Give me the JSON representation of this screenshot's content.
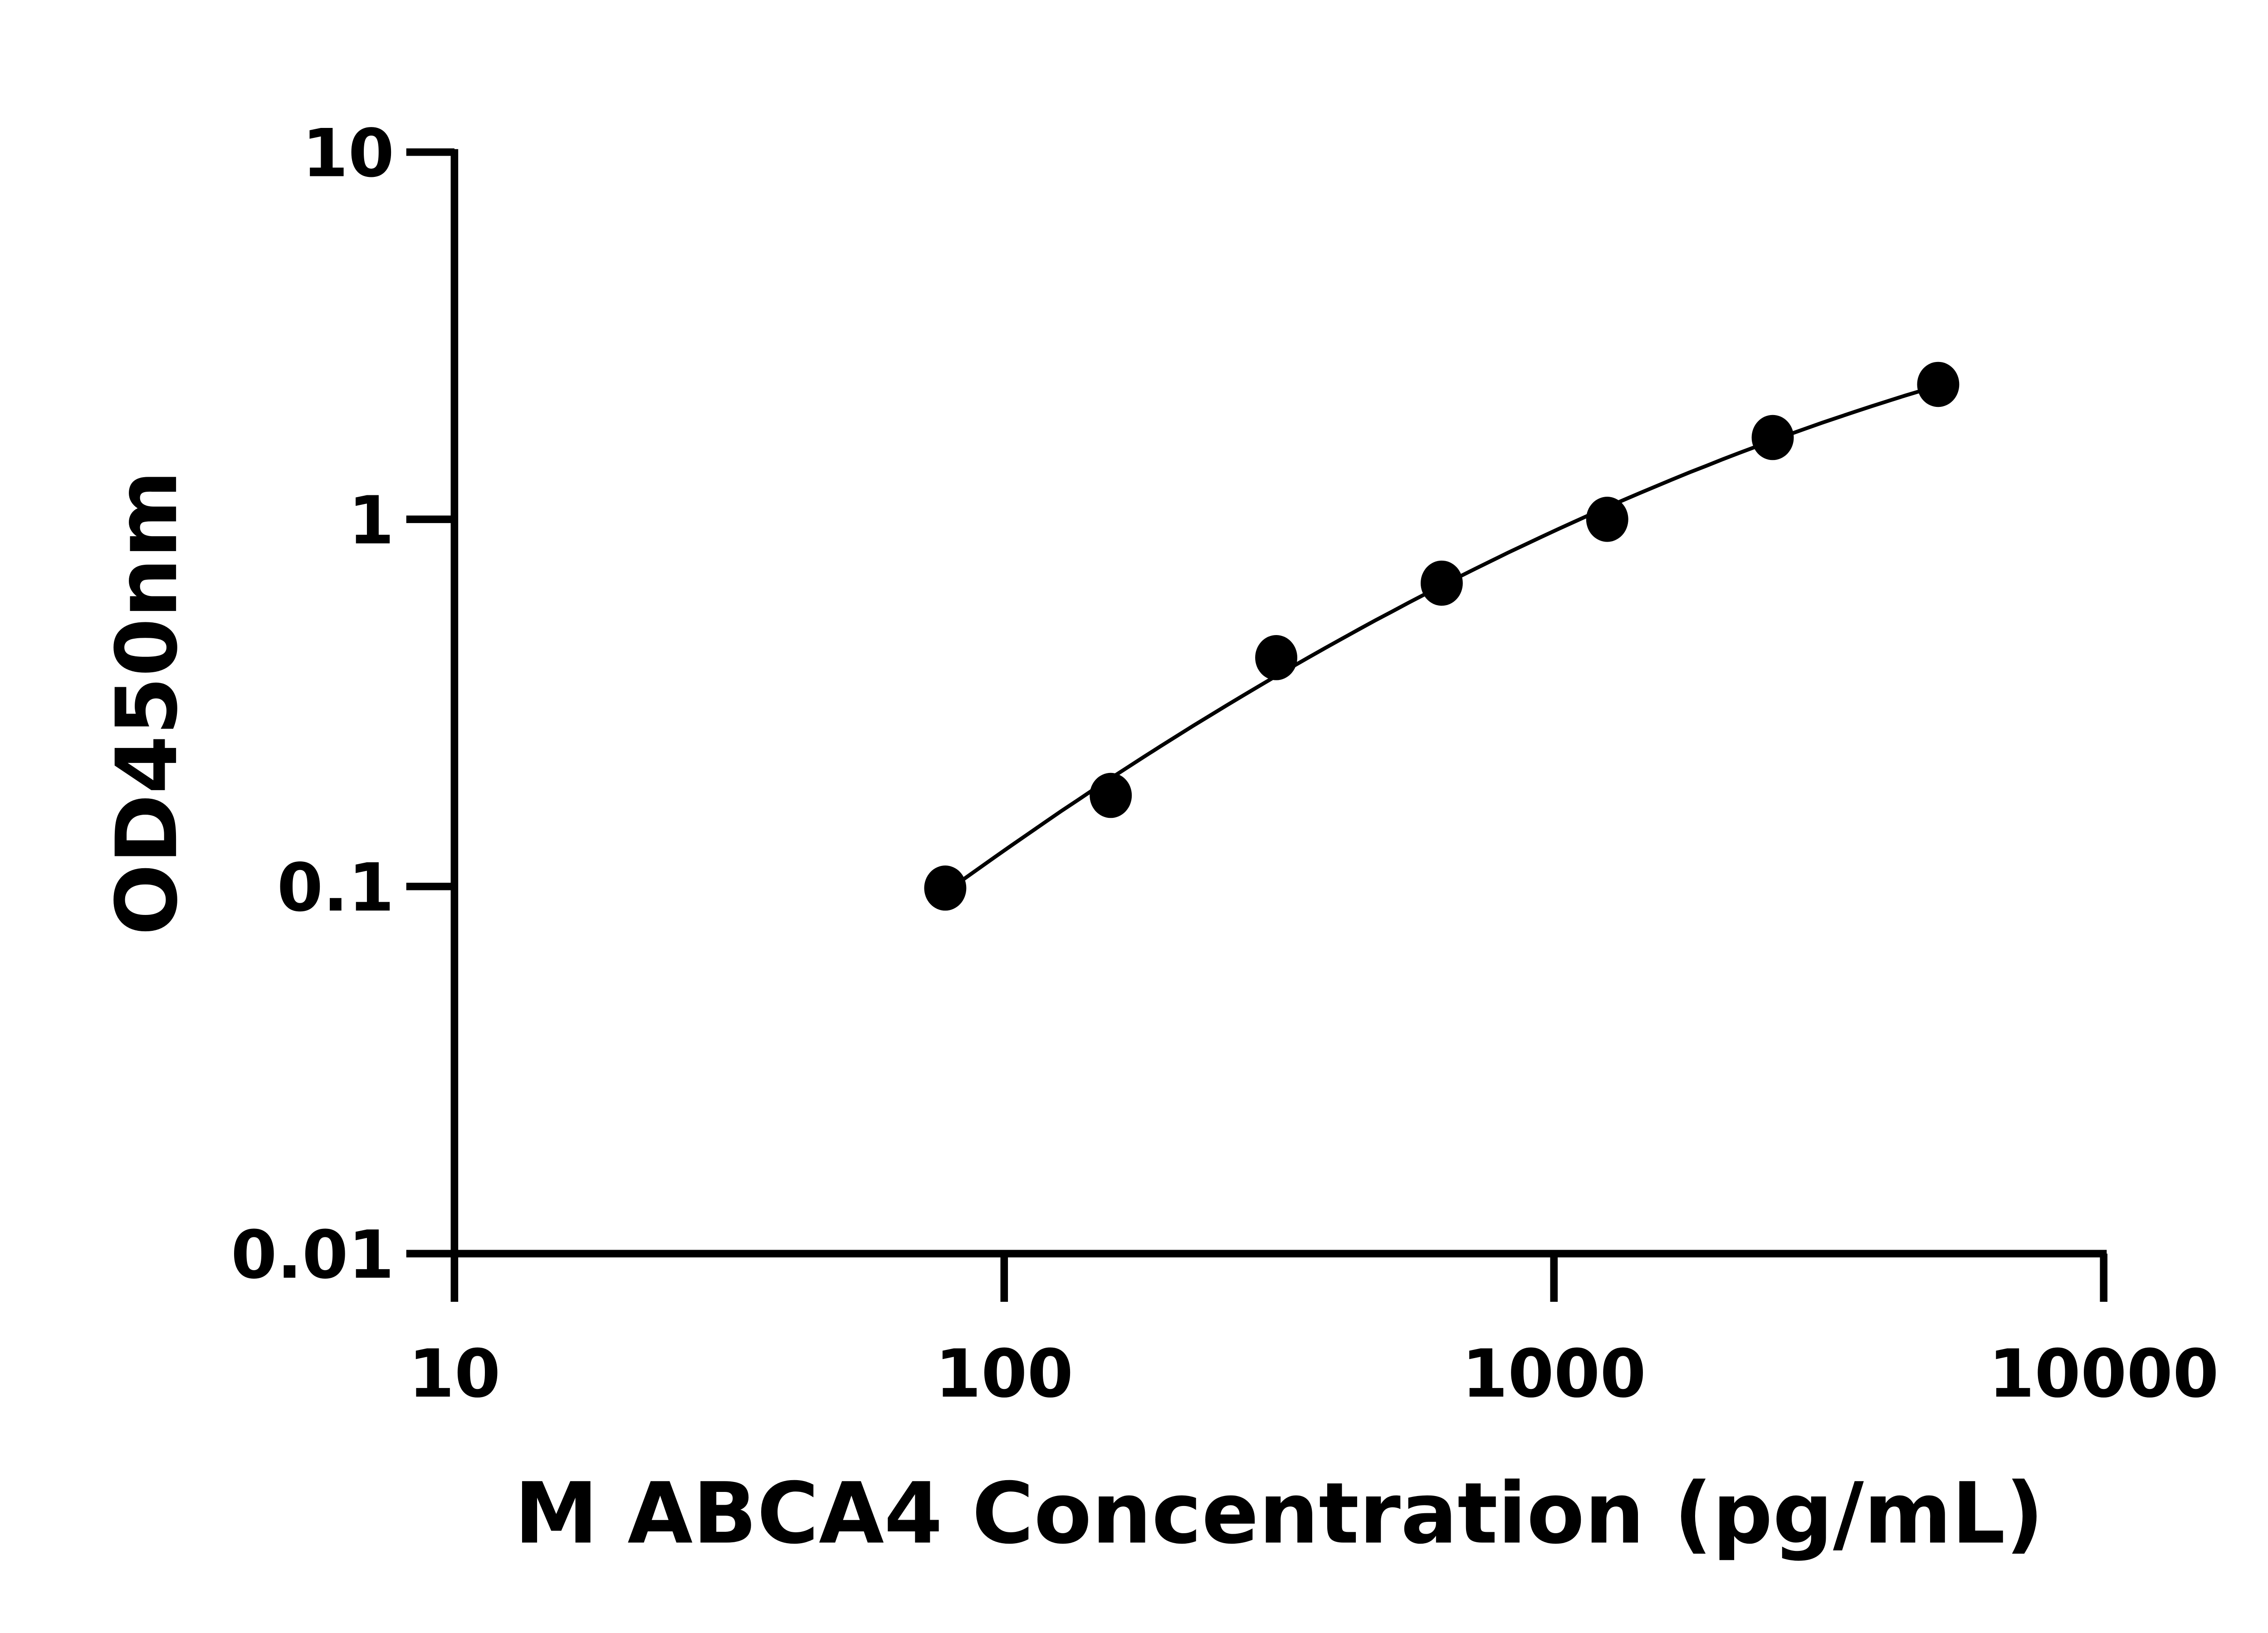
{
  "chart_data": {
    "type": "scatter",
    "title": "",
    "xlabel": "M ABCA4 Concentration (pg/mL)",
    "ylabel": "OD450nm",
    "x_scale": "log",
    "y_scale": "log",
    "xlim": [
      10,
      10000
    ],
    "ylim": [
      0.01,
      10
    ],
    "x_ticks": [
      "10",
      "100",
      "1000",
      "10000"
    ],
    "y_ticks": [
      "0.01",
      "0.1",
      "1",
      "10"
    ],
    "grid": false,
    "legend": "none",
    "fit_curve": true,
    "color": "#000000",
    "points": [
      {
        "x": 78.125,
        "y": 0.099
      },
      {
        "x": 156.25,
        "y": 0.177
      },
      {
        "x": 312.5,
        "y": 0.42
      },
      {
        "x": 625,
        "y": 0.67
      },
      {
        "x": 1250,
        "y": 1.0
      },
      {
        "x": 2500,
        "y": 1.67
      },
      {
        "x": 5000,
        "y": 2.33
      }
    ]
  }
}
